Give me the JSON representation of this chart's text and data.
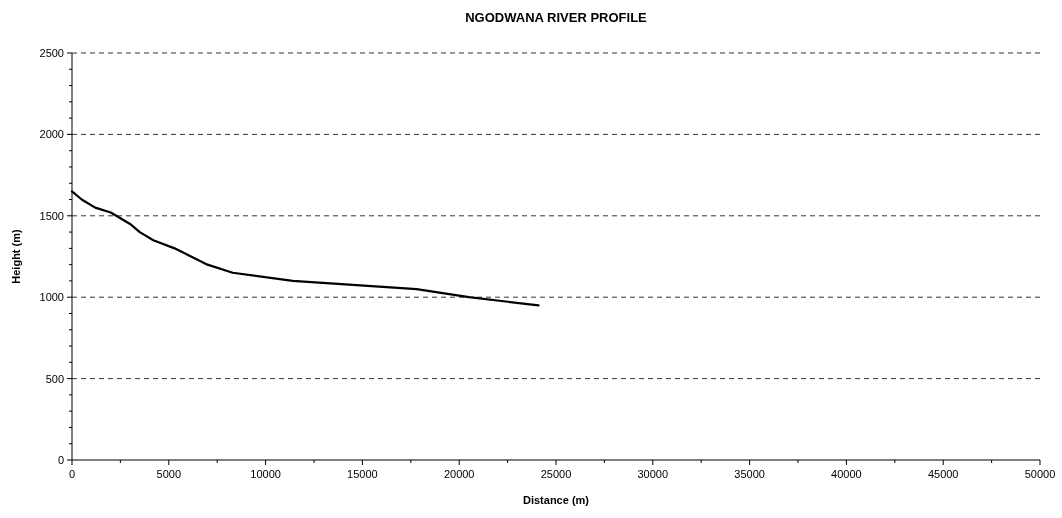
{
  "chart_data": {
    "type": "line",
    "title": "NGODWANA RIVER PROFILE",
    "xlabel": "Distance (m)",
    "ylabel": "Height (m)",
    "x": [
      0,
      500,
      1200,
      2000,
      3000,
      3500,
      4200,
      5300,
      7000,
      8300,
      11400,
      17800,
      20500,
      24100
    ],
    "series": [
      {
        "color": "#000000",
        "values": [
          1650,
          1600,
          1550,
          1520,
          1450,
          1400,
          1350,
          1300,
          1200,
          1150,
          1100,
          1050,
          1000,
          950
        ]
      }
    ],
    "xlim": [
      0,
      50000
    ],
    "ylim": [
      0,
      2500
    ],
    "xticks": [
      0,
      {
        "value": 2500,
        "label": null
      },
      5000,
      {
        "value": 7500,
        "label": null
      },
      10000,
      {
        "value": 12500,
        "label": null
      },
      15000,
      {
        "value": 17500,
        "label": null
      },
      20000,
      {
        "value": 22500,
        "label": null
      },
      25000,
      {
        "value": 27500,
        "label": null
      },
      30000,
      {
        "value": 32500,
        "label": null
      },
      35000,
      {
        "value": 37500,
        "label": null
      },
      40000,
      {
        "value": 42500,
        "label": null
      },
      45000,
      {
        "value": 47500,
        "label": null
      },
      50000
    ],
    "yticks": [
      0,
      {
        "value": 100,
        "label": null
      },
      {
        "value": 200,
        "label": null
      },
      {
        "value": 300,
        "label": null
      },
      {
        "value": 400,
        "label": null
      },
      500,
      {
        "value": 600,
        "label": null
      },
      {
        "value": 700,
        "label": null
      },
      {
        "value": 800,
        "label": null
      },
      {
        "value": 900,
        "label": null
      },
      1000,
      {
        "value": 1100,
        "label": null
      },
      {
        "value": 1200,
        "label": null
      },
      {
        "value": 1300,
        "label": null
      },
      {
        "value": 1400,
        "label": null
      },
      1500,
      {
        "value": 1600,
        "label": null
      },
      {
        "value": 1700,
        "label": null
      },
      {
        "value": 1800,
        "label": null
      },
      {
        "value": 1900,
        "label": null
      },
      2000,
      {
        "value": 2100,
        "label": null
      },
      {
        "value": 2200,
        "label": null
      },
      {
        "value": 2300,
        "label": null
      },
      {
        "value": 2400,
        "label": null
      },
      2500
    ],
    "grid": "y",
    "line_style": "solid"
  }
}
